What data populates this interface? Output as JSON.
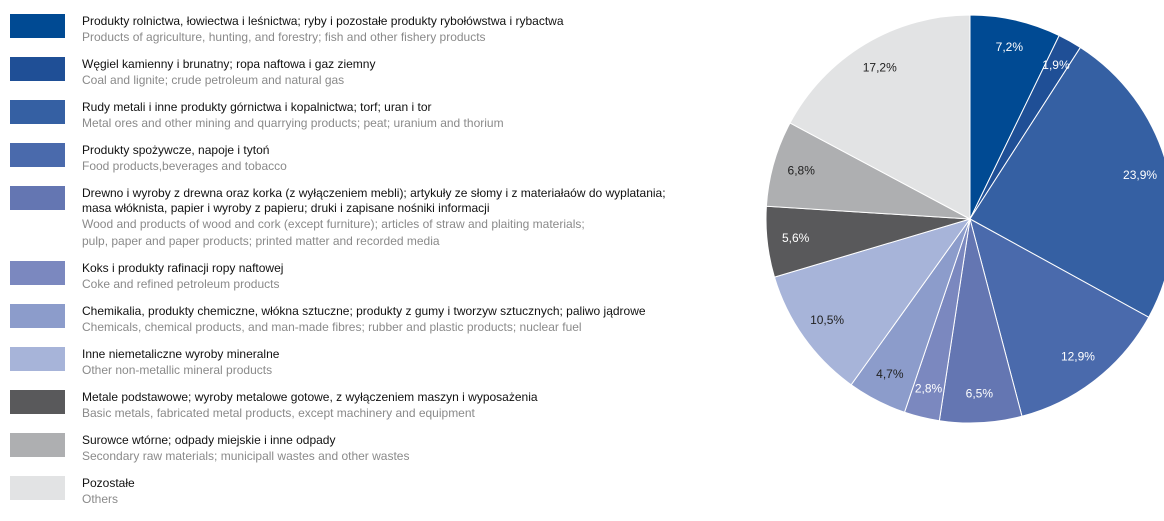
{
  "chart_data": {
    "type": "pie",
    "categories": [
      "Produkty rolnictwa, łowiectwa i leśnictwa; ryby i pozostałe produkty rybołówstwa i rybactwa",
      "Węgiel kamienny i brunatny; ropa naftowa i gaz ziemny",
      "Rudy metali i inne produkty górnictwa i kopalnictwa; torf; uran i tor",
      "Produkty spożywcze, napoje i tytoń",
      "Drewno i wyroby z drewna oraz korka (z wyłączeniem mebli); artykuły ze słomy i z materiałaów do wyplatania;\nmasa włóknista, papier i wyroby z papieru; druki i zapisane nośniki informacji",
      "Koks i produkty rafinacji ropy naftowej",
      "Chemikalia, produkty chemiczne, włókna sztuczne; produkty z gumy i tworzyw sztucznych; paliwo jądrowe",
      "Inne niemetaliczne wyroby mineralne",
      "Metale podstawowe; wyroby metalowe gotowe, z wyłączeniem maszyn i wyposażenia",
      "Surowce wtórne; odpady miejskie i inne odpady",
      "Pozostałe"
    ],
    "categories_en": [
      "Products of agriculture, hunting, and forestry; fish and other fishery products",
      "Coal and lignite; crude petroleum and natural gas",
      "Metal ores and other mining and quarrying products; peat; uranium and thorium",
      "Food products,beverages and tobacco",
      "Wood and products of wood and cork (except furniture); articles of straw and plaiting materials;\npulp, paper and paper products;  printed matter and recorded media",
      "Coke and refined petroleum products",
      "Chemicals, chemical products, and man-made fibres; rubber and plastic products; nuclear fuel",
      "Other non-metallic mineral products",
      "Basic metals, fabricated metal products, except machinery and equipment",
      "Secondary raw materials; municipall wastes and other wastes",
      "Others"
    ],
    "values": [
      7.2,
      1.9,
      23.9,
      12.9,
      6.5,
      2.8,
      4.7,
      10.5,
      5.6,
      6.8,
      17.2
    ],
    "value_labels": [
      "7,2%",
      "1,9%",
      "23,9%",
      "12,9%",
      "6,5%",
      "2,8%",
      "4,7%",
      "10,5%",
      "5,6%",
      "6,8%",
      "17,2%"
    ],
    "colors": [
      "#004a93",
      "#1f4f96",
      "#3560a3",
      "#4a6aac",
      "#6476b2",
      "#7b88bf",
      "#8c9ccb",
      "#a7b4d9",
      "#59595b",
      "#aeafb1",
      "#e2e3e4"
    ]
  }
}
